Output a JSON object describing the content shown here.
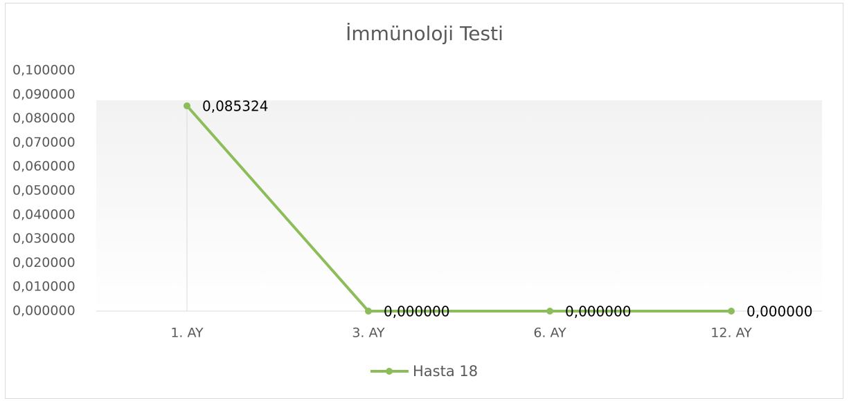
{
  "chart_data": {
    "type": "line",
    "title": "İmmünoloji Testi",
    "categories": [
      "1. AY",
      "3. AY",
      "6. AY",
      "12. AY"
    ],
    "series": [
      {
        "name": "Hasta 18",
        "color": "#8cbd5a",
        "values": [
          0.085324,
          0,
          0,
          0
        ],
        "value_labels": [
          "0,085324",
          "0,000000",
          "0,000000",
          "0,000000"
        ]
      }
    ],
    "ylim": [
      0,
      0.1
    ],
    "yticks": [
      {
        "value": 0,
        "label": "0,000000"
      },
      {
        "value": 0.01,
        "label": "0,010000"
      },
      {
        "value": 0.02,
        "label": "0,020000"
      },
      {
        "value": 0.03,
        "label": "0,030000"
      },
      {
        "value": 0.04,
        "label": "0,040000"
      },
      {
        "value": 0.05,
        "label": "0,050000"
      },
      {
        "value": 0.06,
        "label": "0,060000"
      },
      {
        "value": 0.07,
        "label": "0,070000"
      },
      {
        "value": 0.08,
        "label": "0,080000"
      },
      {
        "value": 0.09,
        "label": "0,090000"
      },
      {
        "value": 0.1,
        "label": "0,100000"
      }
    ],
    "legend": "bottom"
  }
}
